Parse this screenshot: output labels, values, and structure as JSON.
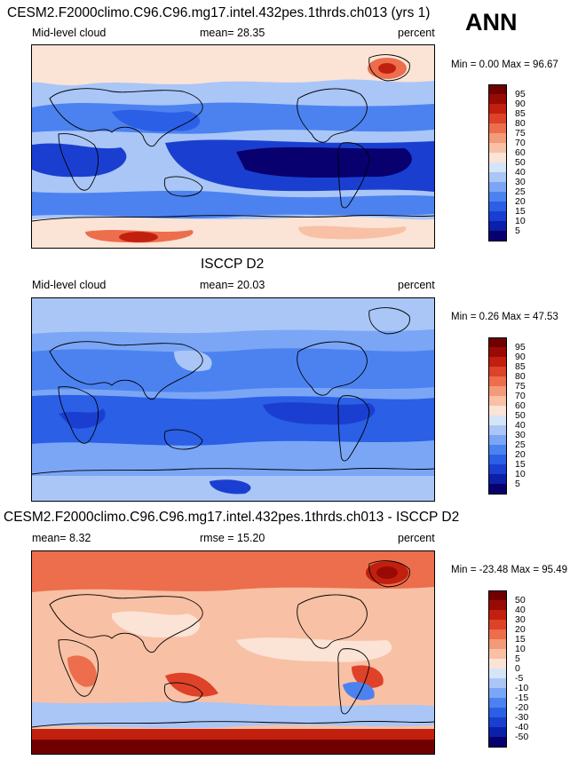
{
  "season": "ANN",
  "panels": [
    {
      "title": "CESM2.F2000climo.C96.C96.mg17.intel.432pes.1thrds.ch013 (yrs 1)",
      "left_label": "Mid-level cloud",
      "stat_label": "mean=  28.35",
      "units": "percent",
      "minmax": "Min =   0.00 Max =  96.67",
      "colorbar_ticks": [
        "95",
        "90",
        "85",
        "80",
        "75",
        "70",
        "60",
        "50",
        "40",
        "30",
        "25",
        "20",
        "15",
        "10",
        "5"
      ]
    },
    {
      "title": "ISCCP D2",
      "left_label": "Mid-level cloud",
      "stat_label": "mean=  20.03",
      "units": "percent",
      "minmax": "Min =   0.26 Max =  47.53",
      "colorbar_ticks": [
        "95",
        "90",
        "85",
        "80",
        "75",
        "70",
        "60",
        "50",
        "40",
        "30",
        "25",
        "20",
        "15",
        "10",
        "5"
      ]
    },
    {
      "title": "CESM2.F2000climo.C96.C96.mg17.intel.432pes.1thrds.ch013 - ISCCP D2",
      "left_label": "mean=  8.32",
      "stat_label": "rmse =  15.20",
      "units": "percent",
      "minmax": "Min = -23.48 Max =  95.49",
      "colorbar_ticks": [
        "50",
        "40",
        "30",
        "20",
        "15",
        "10",
        "5",
        "0",
        "-5",
        "-10",
        "-15",
        "-20",
        "-30",
        "-40",
        "-50"
      ]
    }
  ],
  "colors": {
    "abs_scale": [
      "#08006e",
      "#0b1fa8",
      "#1a3fd0",
      "#2a5fe6",
      "#4c82f0",
      "#7aa6f5",
      "#a9c6f7",
      "#d6e4f8",
      "#fbe3d6",
      "#f8c0a4",
      "#f39a78",
      "#ec6e4c",
      "#de4228",
      "#c2200f",
      "#9a0a05",
      "#700000"
    ],
    "diff_scale": [
      "#08006e",
      "#0b1fa8",
      "#1a3fd0",
      "#2a5fe6",
      "#4c82f0",
      "#7aa6f5",
      "#a9c6f7",
      "#d6e4f8",
      "#fbe3d6",
      "#f8c0a4",
      "#f39a78",
      "#ec6e4c",
      "#de4228",
      "#c2200f",
      "#9a0a05",
      "#700000"
    ]
  }
}
